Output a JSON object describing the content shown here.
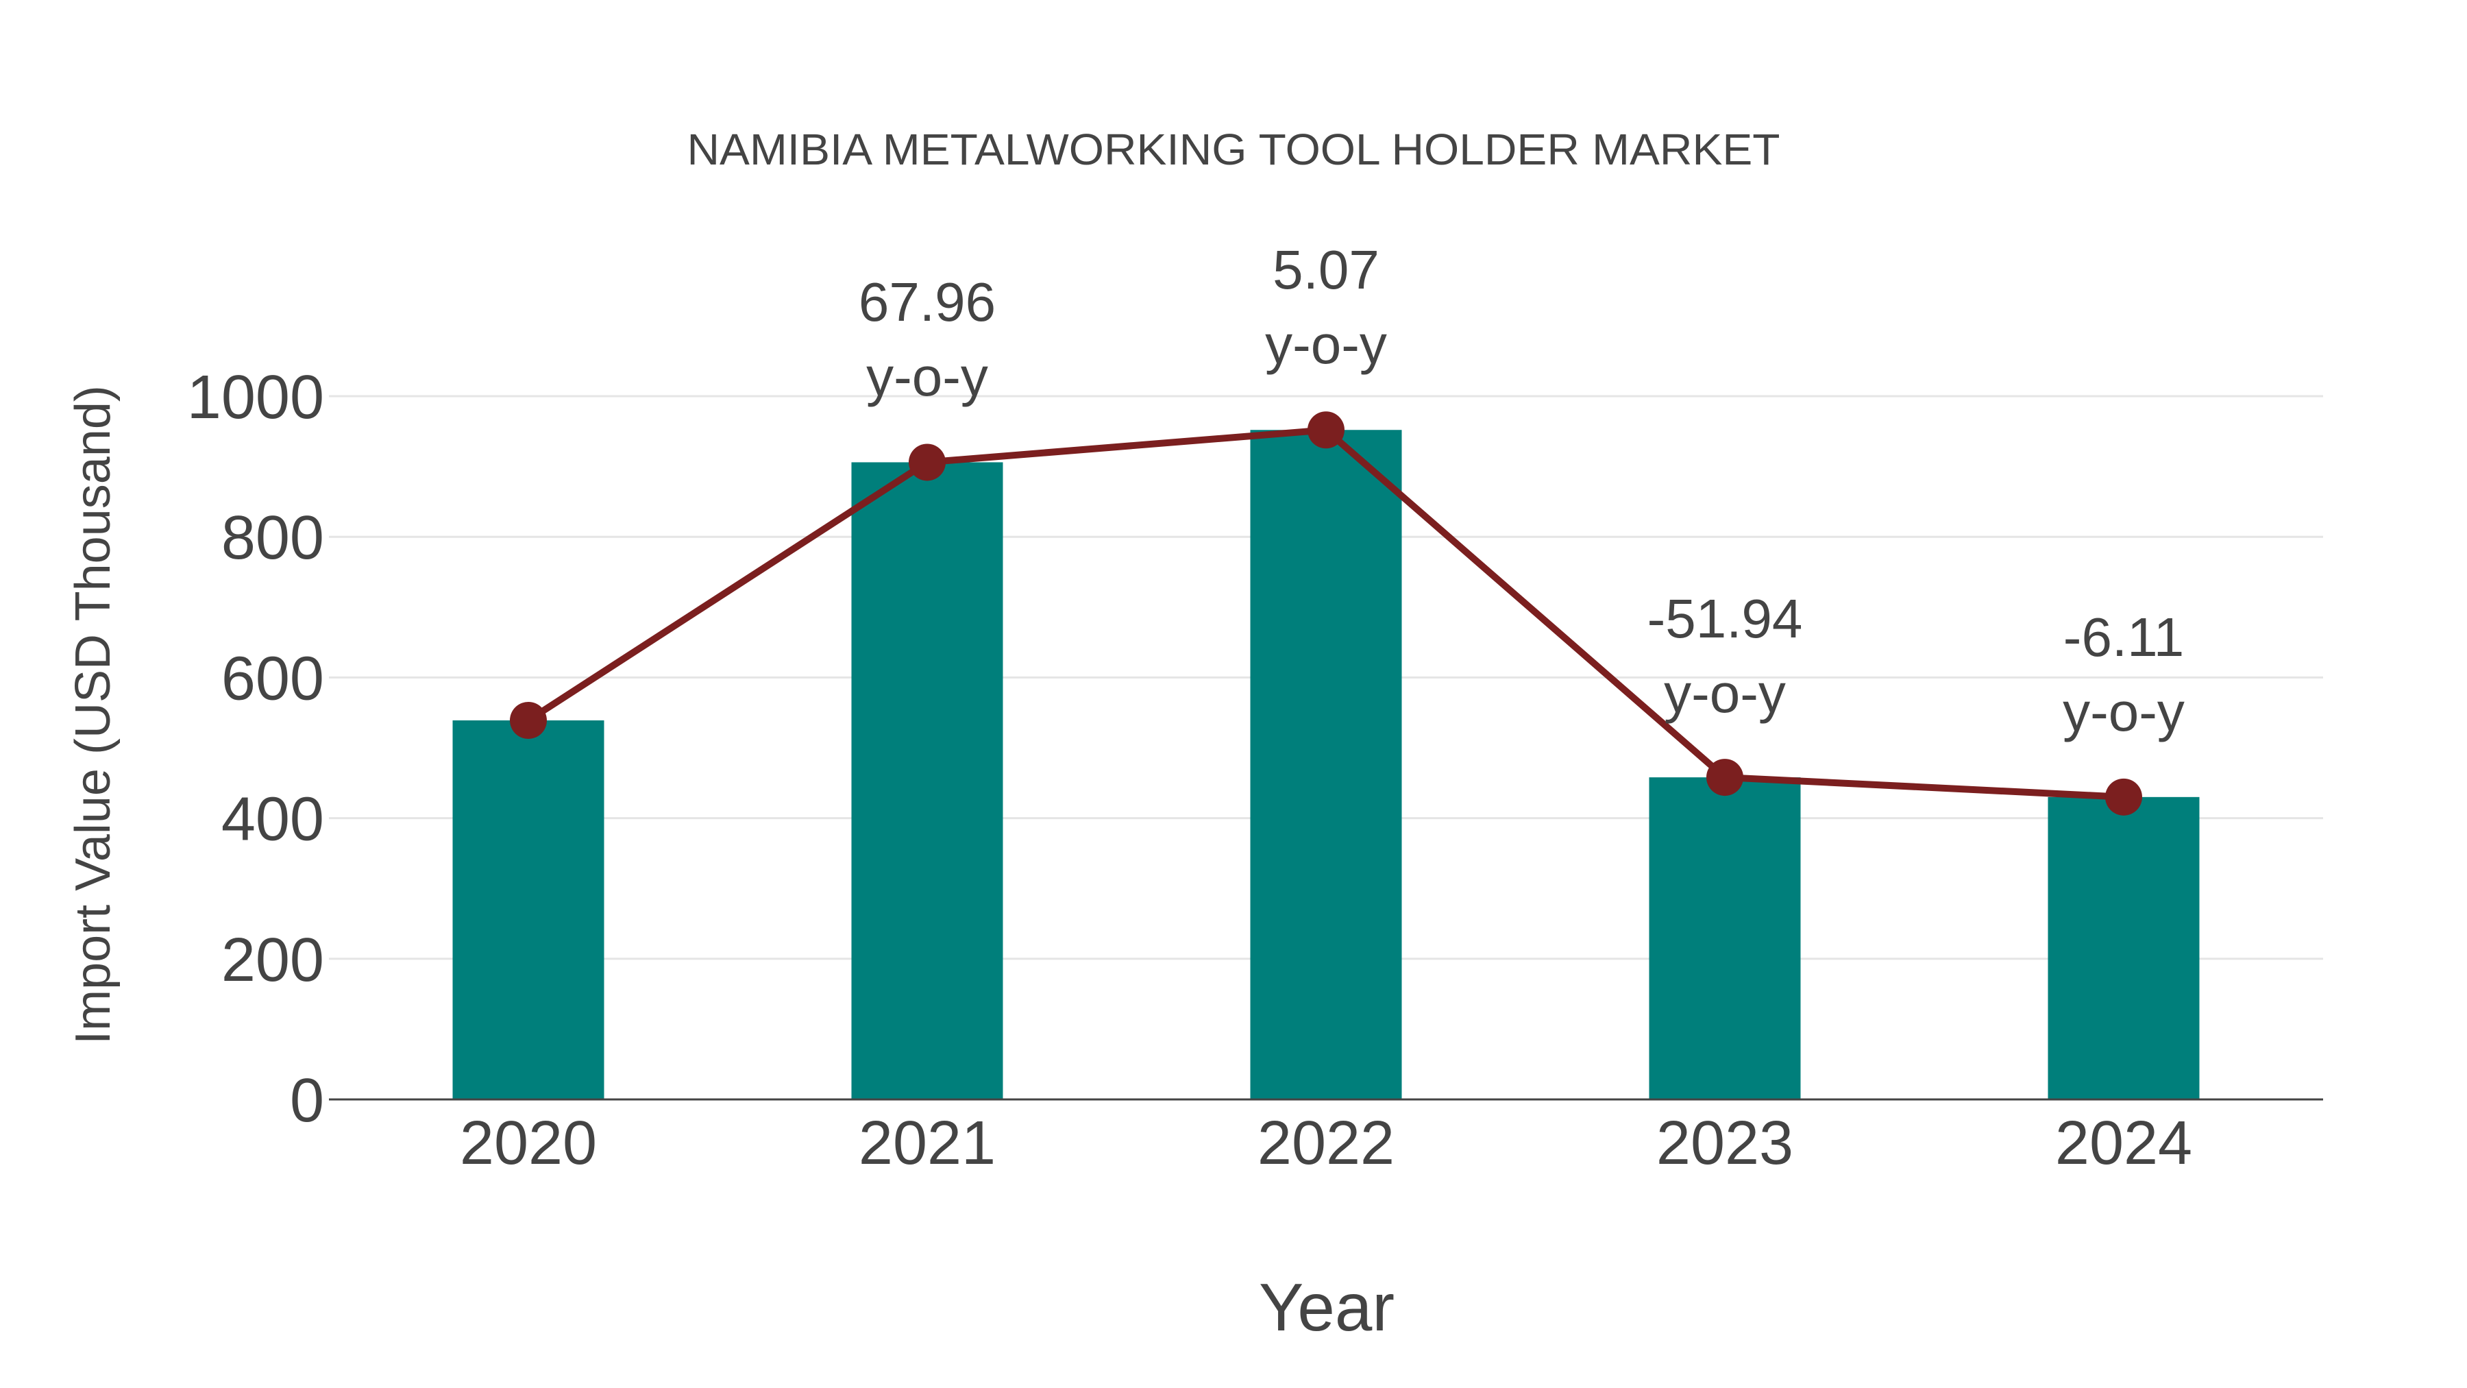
{
  "chart_data": {
    "type": "bar",
    "title": "NAMIBIA METALWORKING TOOL HOLDER MARKET",
    "xlabel": "Year",
    "ylabel": "Import Value (USD Thousand)",
    "categories": [
      "2020",
      "2021",
      "2022",
      "2023",
      "2024"
    ],
    "series": [
      {
        "name": "Import Value",
        "type": "bar",
        "color": "#007f7b",
        "values": [
          539,
          906,
          952,
          458,
          430
        ]
      },
      {
        "name": "Trend",
        "type": "line",
        "color": "#7b1f1f",
        "values": [
          539,
          906,
          952,
          458,
          430
        ]
      }
    ],
    "annotations": [
      {
        "category": "2021",
        "value": "67.96",
        "unit": "y-o-y"
      },
      {
        "category": "2022",
        "value": "5.07",
        "unit": "y-o-y"
      },
      {
        "category": "2023",
        "value": "-51.94",
        "unit": "y-o-y"
      },
      {
        "category": "2024",
        "value": "-6.11",
        "unit": "y-o-y"
      }
    ],
    "yticks": [
      0,
      200,
      400,
      600,
      800,
      1000
    ],
    "ylim": [
      0,
      1000
    ],
    "grid": true,
    "legend": "none"
  },
  "colors": {
    "bar": "#007f7b",
    "line": "#7b1f1f",
    "text": "#444444",
    "grid": "#e5e5e5",
    "axis": "#444444"
  }
}
